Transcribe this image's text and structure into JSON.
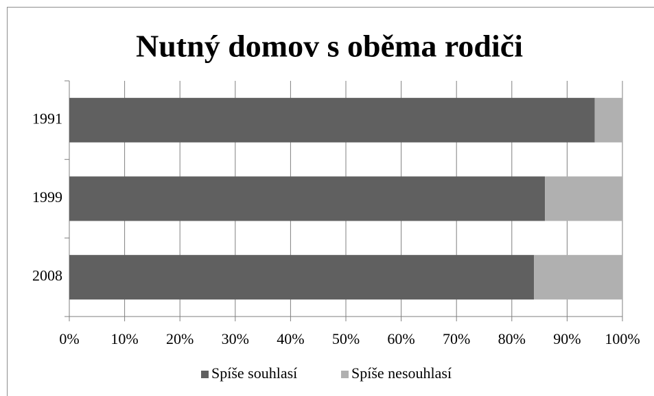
{
  "chart_data": {
    "type": "stacked-bar-horizontal",
    "title": "Nutný domov s oběma rodiči",
    "categories": [
      "1991",
      "1999",
      "2008"
    ],
    "series": [
      {
        "name": "Spíše souhlasí",
        "color": "#606060",
        "values": [
          95,
          86,
          84
        ]
      },
      {
        "name": "Spíše nesouhlasí",
        "color": "#b0b0b0",
        "values": [
          5,
          14,
          16
        ]
      }
    ],
    "xlim": [
      0,
      100
    ],
    "xticks": [
      {
        "value": 0,
        "label": "0%"
      },
      {
        "value": 10,
        "label": "10%"
      },
      {
        "value": 20,
        "label": "20%"
      },
      {
        "value": 30,
        "label": "30%"
      },
      {
        "value": 40,
        "label": "40%"
      },
      {
        "value": 50,
        "label": "50%"
      },
      {
        "value": 60,
        "label": "60%"
      },
      {
        "value": 70,
        "label": "70%"
      },
      {
        "value": 80,
        "label": "80%"
      },
      {
        "value": 90,
        "label": "90%"
      },
      {
        "value": 100,
        "label": "100%"
      }
    ],
    "grid": true,
    "legend": "bottom"
  }
}
